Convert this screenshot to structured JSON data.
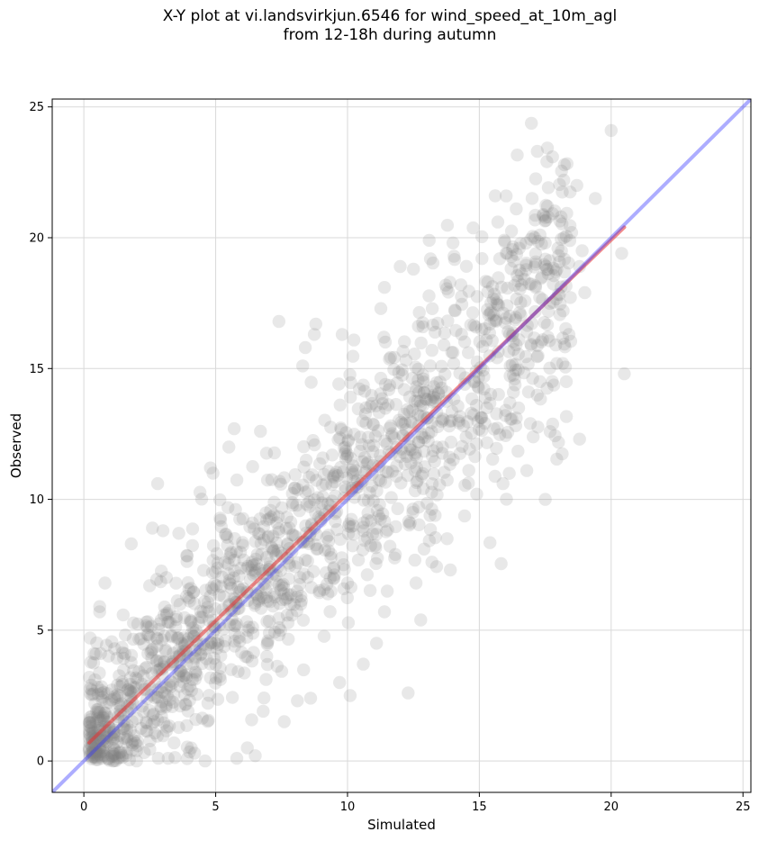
{
  "chart_data": {
    "type": "scatter",
    "title_line1": "X-Y plot at vi.landsvirkjun.6546 for wind_speed_at_10m_agl",
    "title_line2": "from 12-18h during autumn",
    "xlabel": "Simulated",
    "ylabel": "Observed",
    "xlim": [
      -1.2,
      25.3
    ],
    "ylim": [
      -1.2,
      25.3
    ],
    "xticks": [
      0,
      5,
      10,
      15,
      20,
      25
    ],
    "yticks": [
      0,
      5,
      10,
      15,
      20,
      25
    ],
    "grid": true,
    "point_color": "#808080",
    "point_alpha": 0.18,
    "one_to_one_line": {
      "color": "#3333ff",
      "x": [
        -1.2,
        25.3
      ],
      "y": [
        -1.2,
        25.3
      ]
    },
    "fit_line": {
      "color": "#e83030",
      "x": [
        0.2,
        20.5
      ],
      "y": [
        0.7,
        20.4
      ]
    },
    "series": [
      {
        "type": "scatter",
        "cloud": {
          "count": 1500,
          "x_range": [
            0.2,
            20.5
          ],
          "fit_slope": 0.97,
          "fit_intercept": 0.5,
          "spread_sd": 2.2
        },
        "points": [
          [
            20.0,
            24.1
          ],
          [
            17.2,
            23.3
          ],
          [
            18.7,
            22.0
          ],
          [
            19.4,
            21.5
          ],
          [
            15.6,
            21.6
          ],
          [
            17.0,
            21.5
          ],
          [
            16.4,
            21.1
          ],
          [
            15.7,
            20.6
          ],
          [
            18.1,
            20.8
          ],
          [
            17.1,
            20.0
          ],
          [
            17.5,
            19.8
          ],
          [
            18.9,
            19.5
          ],
          [
            18.5,
            20.2
          ],
          [
            13.1,
            19.9
          ],
          [
            14.0,
            19.8
          ],
          [
            15.1,
            19.2
          ],
          [
            16.3,
            19.1
          ],
          [
            20.4,
            19.4
          ],
          [
            18.8,
            18.9
          ],
          [
            17.9,
            18.7
          ],
          [
            12.0,
            18.9
          ],
          [
            12.5,
            18.8
          ],
          [
            14.3,
            18.2
          ],
          [
            11.4,
            18.1
          ],
          [
            20.5,
            14.8
          ],
          [
            17.5,
            10.0
          ],
          [
            18.8,
            12.3
          ],
          [
            16.8,
            11.1
          ],
          [
            15.9,
            10.6
          ],
          [
            14.9,
            10.2
          ],
          [
            12.3,
            2.6
          ],
          [
            10.1,
            2.5
          ],
          [
            10.6,
            3.7
          ],
          [
            11.1,
            4.5
          ],
          [
            9.7,
            3.0
          ],
          [
            8.6,
            2.4
          ],
          [
            8.1,
            2.3
          ],
          [
            7.6,
            1.5
          ],
          [
            6.8,
            1.9
          ],
          [
            6.5,
            0.2
          ],
          [
            7.4,
            16.8
          ],
          [
            8.8,
            16.7
          ],
          [
            9.8,
            16.3
          ],
          [
            8.4,
            15.8
          ],
          [
            8.3,
            15.1
          ],
          [
            6.7,
            12.6
          ],
          [
            5.7,
            12.7
          ],
          [
            5.5,
            12.0
          ],
          [
            4.9,
            11.0
          ],
          [
            4.8,
            11.2
          ],
          [
            2.8,
            10.6
          ],
          [
            2.6,
            8.9
          ],
          [
            1.8,
            8.3
          ],
          [
            3.6,
            8.7
          ],
          [
            3.0,
            8.8
          ],
          [
            0.8,
            6.8
          ],
          [
            0.6,
            5.9
          ],
          [
            0.6,
            5.7
          ],
          [
            0.3,
            1.7
          ],
          [
            0.2,
            0.4
          ],
          [
            1.1,
            0.0
          ],
          [
            2.0,
            0.0
          ],
          [
            3.2,
            0.1
          ],
          [
            4.6,
            0.0
          ],
          [
            5.8,
            0.1
          ],
          [
            6.2,
            0.5
          ],
          [
            4.2,
            0.3
          ],
          [
            13.9,
            7.3
          ],
          [
            13.2,
            7.6
          ],
          [
            12.6,
            6.8
          ],
          [
            11.4,
            5.7
          ],
          [
            10.0,
            6.8
          ],
          [
            16.5,
            16.1
          ],
          [
            17.6,
            16.2
          ],
          [
            18.4,
            16.3
          ],
          [
            19.0,
            17.9
          ],
          [
            17.3,
            14.5
          ],
          [
            18.3,
            14.5
          ],
          [
            17.9,
            15.9
          ],
          [
            16.0,
            13.4
          ]
        ]
      }
    ]
  }
}
